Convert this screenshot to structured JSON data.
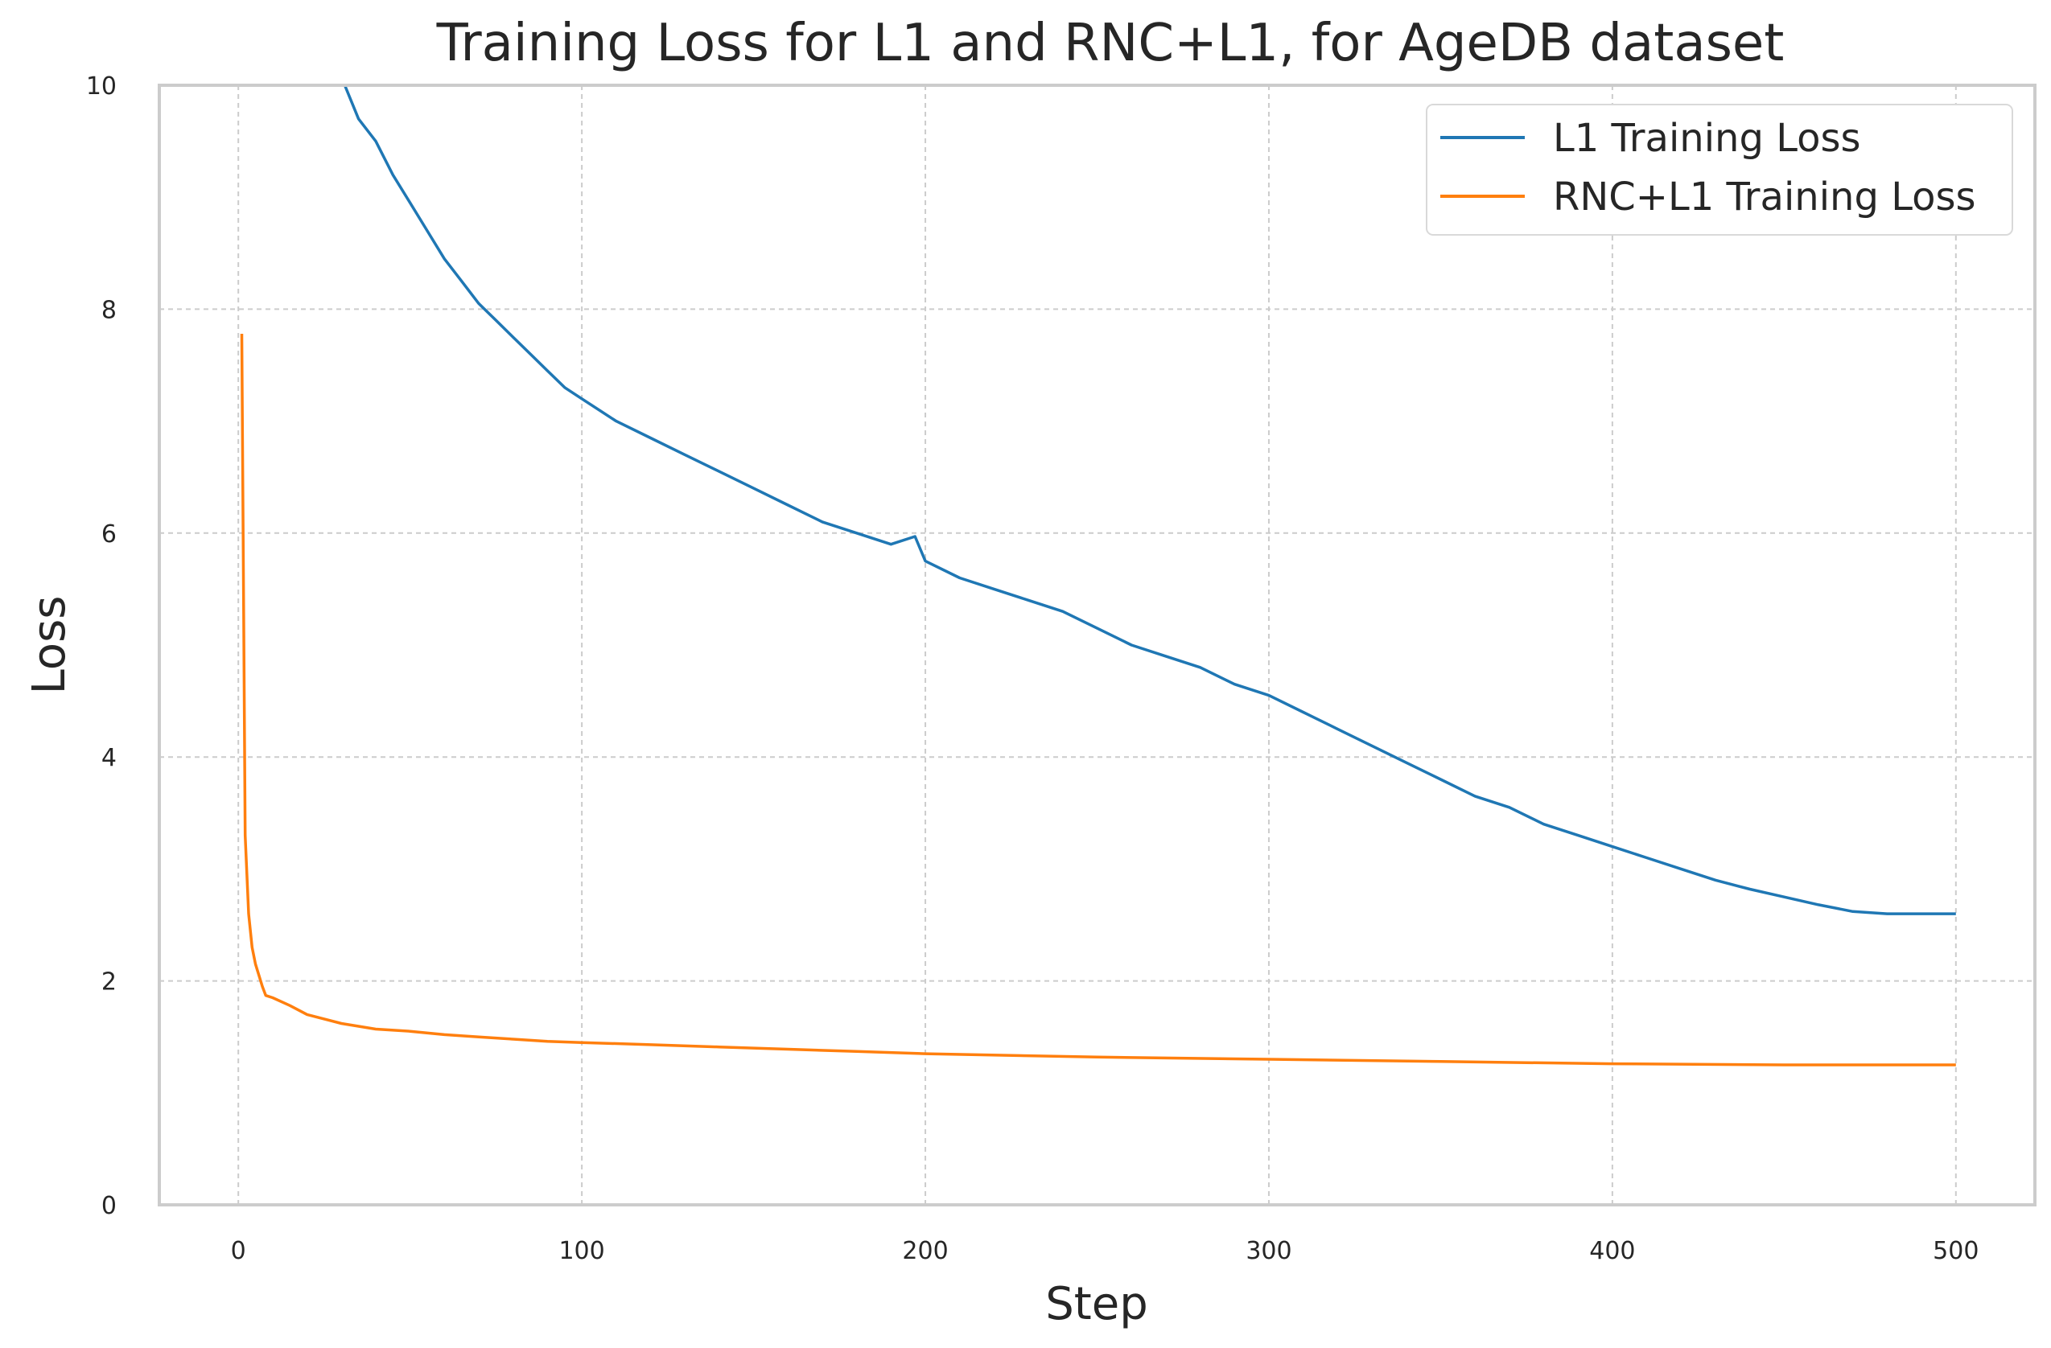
{
  "chart_data": {
    "type": "line",
    "title": "Training Loss for L1 and RNC+L1, for AgeDB dataset",
    "xlabel": "Step",
    "ylabel": "Loss",
    "xlim": [
      -23,
      523
    ],
    "ylim": [
      0,
      10
    ],
    "grid": true,
    "legend_position": "top-right",
    "x_ticks": [
      0,
      100,
      200,
      300,
      400,
      500
    ],
    "y_ticks": [
      0,
      2,
      4,
      6,
      8,
      10
    ],
    "x_tick_labels": [
      "0",
      "100",
      "200",
      "300",
      "400",
      "500"
    ],
    "y_tick_labels": [
      "0",
      "2",
      "4",
      "6",
      "8",
      "10"
    ],
    "series": [
      {
        "name": "L1 Training Loss",
        "color": "#1f77b4",
        "x": [
          31,
          35,
          40,
          45,
          50,
          55,
          60,
          65,
          70,
          75,
          80,
          85,
          90,
          95,
          100,
          110,
          120,
          130,
          140,
          150,
          160,
          170,
          180,
          190,
          197,
          200,
          210,
          220,
          230,
          240,
          250,
          260,
          270,
          280,
          290,
          300,
          310,
          320,
          330,
          340,
          350,
          360,
          370,
          380,
          390,
          400,
          410,
          420,
          430,
          440,
          450,
          460,
          470,
          480,
          490,
          500
        ],
        "y": [
          10.0,
          9.7,
          9.5,
          9.2,
          8.95,
          8.7,
          8.45,
          8.25,
          8.05,
          7.9,
          7.75,
          7.6,
          7.45,
          7.3,
          7.2,
          7.0,
          6.85,
          6.7,
          6.55,
          6.4,
          6.25,
          6.1,
          6.0,
          5.9,
          5.97,
          5.75,
          5.6,
          5.5,
          5.4,
          5.3,
          5.15,
          5.0,
          4.9,
          4.8,
          4.65,
          4.55,
          4.4,
          4.25,
          4.1,
          3.95,
          3.8,
          3.65,
          3.55,
          3.4,
          3.3,
          3.2,
          3.1,
          3.0,
          2.9,
          2.82,
          2.75,
          2.68,
          2.62,
          2.6,
          2.6,
          2.6
        ]
      },
      {
        "name": "RNC+L1 Training Loss",
        "color": "#ff7f0e",
        "x": [
          1,
          2,
          3,
          4,
          5,
          6,
          7,
          8,
          10,
          15,
          20,
          30,
          40,
          50,
          60,
          70,
          80,
          90,
          100,
          120,
          140,
          160,
          180,
          200,
          250,
          300,
          350,
          400,
          450,
          500
        ],
        "y": [
          7.78,
          3.3,
          2.6,
          2.3,
          2.15,
          2.05,
          1.95,
          1.87,
          1.85,
          1.78,
          1.7,
          1.62,
          1.57,
          1.55,
          1.52,
          1.5,
          1.48,
          1.46,
          1.45,
          1.43,
          1.41,
          1.39,
          1.37,
          1.35,
          1.32,
          1.3,
          1.28,
          1.26,
          1.25,
          1.25
        ]
      }
    ]
  }
}
